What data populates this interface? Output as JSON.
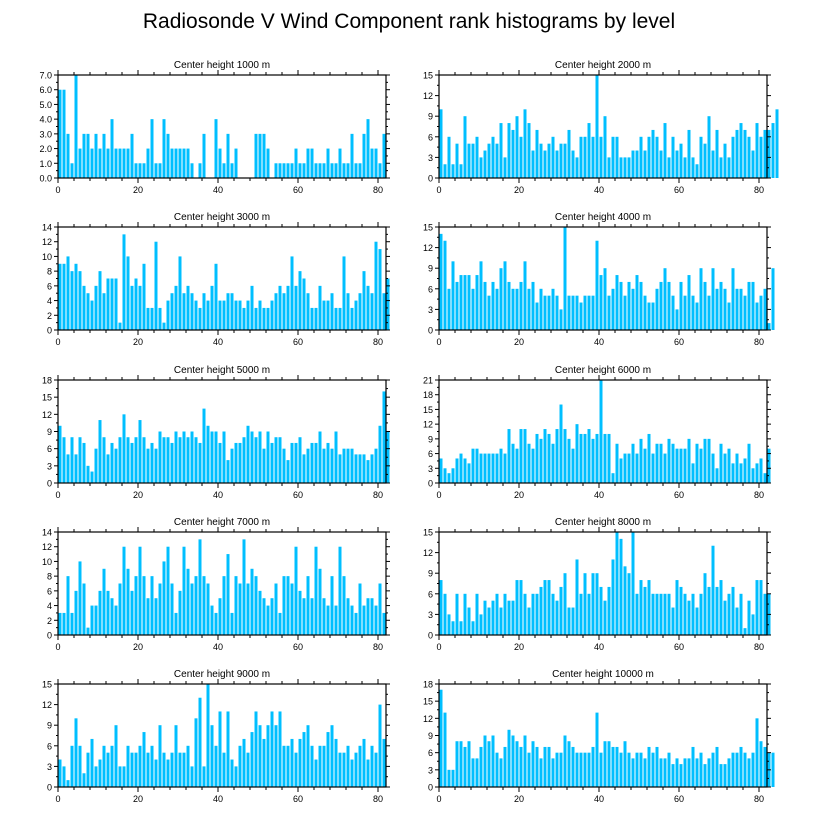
{
  "title": "Radiosonde V Wind Component rank histograms by level",
  "bar_color": "#00BFFF",
  "chart_data": [
    {
      "type": "bar",
      "title": "Center height 1000 m",
      "ylim": [
        0,
        7
      ],
      "yticks": [
        0,
        1,
        2,
        3,
        4,
        5,
        6,
        7
      ],
      "ytick_labels": [
        "0.0",
        "1.0",
        "2.0",
        "3.0",
        "4.0",
        "5.0",
        "6.0",
        "7.0"
      ],
      "xlim": [
        0,
        82
      ],
      "xticks": [
        0,
        20,
        40,
        60,
        80
      ],
      "values": [
        6,
        6,
        3,
        1,
        7,
        2,
        3,
        3,
        2,
        3,
        2,
        3,
        2,
        4,
        2,
        2,
        2,
        2,
        3,
        1,
        1,
        1,
        2,
        4,
        1,
        1,
        4,
        3,
        2,
        2,
        2,
        2,
        2,
        1,
        0,
        1,
        3,
        0,
        0,
        4,
        2,
        1,
        3,
        1,
        2,
        0,
        0,
        0,
        0,
        3,
        3,
        3,
        2,
        0,
        1,
        1,
        1,
        1,
        1,
        2,
        1,
        1,
        2,
        2,
        1,
        1,
        1,
        2,
        1,
        1,
        2,
        1,
        1,
        3,
        1,
        1,
        3,
        4,
        2,
        2,
        1,
        3
      ]
    },
    {
      "type": "bar",
      "title": "Center height 2000 m",
      "ylim": [
        0,
        15
      ],
      "yticks": [
        0,
        3,
        6,
        9,
        12,
        15
      ],
      "ytick_labels": [
        "0",
        "3",
        "6",
        "9",
        "12",
        "15"
      ],
      "xlim": [
        0,
        82
      ],
      "xticks": [
        0,
        20,
        40,
        60,
        80
      ],
      "values": [
        10,
        2,
        6,
        2,
        5,
        2,
        9,
        5,
        5,
        6,
        3,
        4,
        5,
        6,
        5,
        8,
        3,
        8,
        7,
        9,
        6,
        10,
        8,
        4,
        7,
        5,
        4,
        5,
        6,
        4,
        5,
        5,
        7,
        4,
        3,
        6,
        6,
        8,
        6,
        15,
        6,
        9,
        3,
        6,
        6,
        3,
        3,
        3,
        4,
        4,
        6,
        4,
        6,
        7,
        6,
        4,
        8,
        3,
        6,
        4,
        5,
        3,
        7,
        3,
        2,
        6,
        5,
        9,
        4,
        7,
        3,
        5,
        3,
        6,
        7,
        8,
        7,
        6,
        4,
        8,
        6,
        7,
        7,
        8,
        10
      ]
    },
    {
      "type": "bar",
      "title": "Center height 3000 m",
      "ylim": [
        0,
        14
      ],
      "yticks": [
        0,
        2,
        4,
        6,
        8,
        10,
        12,
        14
      ],
      "ytick_labels": [
        "0",
        "2",
        "4",
        "6",
        "8",
        "10",
        "12",
        "14"
      ],
      "xlim": [
        0,
        82
      ],
      "xticks": [
        0,
        20,
        40,
        60,
        80
      ],
      "values": [
        9,
        9,
        10,
        8,
        9,
        8,
        6,
        5,
        4,
        6,
        8,
        5,
        7,
        7,
        7,
        1,
        13,
        10,
        6,
        7,
        6,
        9,
        3,
        3,
        12,
        3,
        1,
        4,
        5,
        6,
        10,
        5,
        6,
        5,
        4,
        3,
        5,
        4,
        6,
        9,
        4,
        4,
        5,
        5,
        4,
        4,
        3,
        4,
        6,
        3,
        4,
        3,
        3,
        4,
        5,
        6,
        5,
        6,
        10,
        6,
        8,
        7,
        5,
        3,
        3,
        6,
        4,
        4,
        5,
        3,
        3,
        10,
        5,
        3,
        4,
        5,
        8,
        6,
        5,
        12,
        11,
        5,
        7
      ]
    },
    {
      "type": "bar",
      "title": "Center height 4000 m",
      "ylim": [
        0,
        15
      ],
      "yticks": [
        0,
        3,
        6,
        9,
        12,
        15
      ],
      "ytick_labels": [
        "0",
        "3",
        "6",
        "9",
        "12",
        "15"
      ],
      "xlim": [
        0,
        82
      ],
      "xticks": [
        0,
        20,
        40,
        60,
        80
      ],
      "values": [
        14,
        13,
        6,
        10,
        7,
        8,
        8,
        8,
        6,
        8,
        10,
        7,
        5,
        7,
        6,
        9,
        10,
        7,
        6,
        6,
        7,
        10,
        6,
        7,
        4,
        6,
        5,
        5,
        6,
        5,
        3,
        15,
        5,
        5,
        5,
        4,
        5,
        5,
        5,
        13,
        8,
        9,
        5,
        6,
        8,
        7,
        5,
        7,
        6,
        8,
        7,
        5,
        4,
        4,
        6,
        7,
        9,
        7,
        5,
        3,
        7,
        5,
        8,
        5,
        4,
        9,
        7,
        5,
        9,
        6,
        7,
        6,
        4,
        9,
        6,
        6,
        5,
        7,
        7,
        4,
        5,
        6,
        1,
        9
      ]
    },
    {
      "type": "bar",
      "title": "Center height 5000 m",
      "ylim": [
        0,
        18
      ],
      "yticks": [
        0,
        3,
        6,
        9,
        12,
        15,
        18
      ],
      "ytick_labels": [
        "0",
        "3",
        "6",
        "9",
        "12",
        "15",
        "18"
      ],
      "xlim": [
        0,
        82
      ],
      "xticks": [
        0,
        20,
        40,
        60,
        80
      ],
      "values": [
        10,
        8,
        5,
        8,
        5,
        8,
        7,
        3,
        2,
        6,
        11,
        8,
        5,
        7,
        6,
        8,
        12,
        8,
        7,
        8,
        11,
        8,
        6,
        7,
        6,
        9,
        8,
        8,
        7,
        9,
        8,
        9,
        8,
        9,
        8,
        7,
        13,
        10,
        9,
        9,
        7,
        9,
        4,
        6,
        7,
        7,
        8,
        10,
        9,
        8,
        9,
        6,
        9,
        7,
        8,
        8,
        6,
        4,
        7,
        7,
        8,
        5,
        6,
        7,
        7,
        9,
        6,
        7,
        6,
        9,
        5,
        6,
        6,
        6,
        5,
        5,
        5,
        4,
        5,
        6,
        10,
        16,
        9
      ]
    },
    {
      "type": "bar",
      "title": "Center height 6000 m",
      "ylim": [
        0,
        21
      ],
      "yticks": [
        0,
        3,
        6,
        9,
        12,
        15,
        18,
        21
      ],
      "ytick_labels": [
        "0",
        "3",
        "6",
        "9",
        "12",
        "15",
        "18",
        "21"
      ],
      "xlim": [
        0,
        82
      ],
      "xticks": [
        0,
        20,
        40,
        60,
        80
      ],
      "values": [
        5,
        3,
        2,
        3,
        5,
        6,
        5,
        4,
        7,
        7,
        6,
        6,
        6,
        6,
        6,
        7,
        6,
        11,
        8,
        7,
        11,
        11,
        8,
        7,
        10,
        9,
        11,
        10,
        8,
        11,
        16,
        11,
        9,
        7,
        12,
        10,
        10,
        11,
        9,
        10,
        21,
        10,
        10,
        2,
        8,
        5,
        6,
        6,
        8,
        6,
        9,
        7,
        10,
        6,
        8,
        8,
        6,
        9,
        8,
        7,
        7,
        7,
        9,
        4,
        8,
        7,
        9,
        9,
        6,
        3,
        8,
        6,
        7,
        4,
        6,
        4,
        5,
        8,
        3,
        4,
        5,
        2,
        7
      ]
    },
    {
      "type": "bar",
      "title": "Center height 7000 m",
      "ylim": [
        0,
        14
      ],
      "yticks": [
        0,
        2,
        4,
        6,
        8,
        10,
        12,
        14
      ],
      "ytick_labels": [
        "0",
        "2",
        "4",
        "6",
        "8",
        "10",
        "12",
        "14"
      ],
      "xlim": [
        0,
        82
      ],
      "xticks": [
        0,
        20,
        40,
        60,
        80
      ],
      "values": [
        3,
        3,
        8,
        3,
        6,
        10,
        7,
        1,
        4,
        4,
        6,
        9,
        6,
        5,
        4,
        7,
        12,
        9,
        6,
        8,
        12,
        8,
        5,
        8,
        5,
        7,
        10,
        12,
        7,
        3,
        6,
        12,
        9,
        7,
        8,
        13,
        8,
        7,
        4,
        3,
        5,
        8,
        11,
        3,
        8,
        7,
        13,
        7,
        9,
        8,
        6,
        5,
        4,
        5,
        7,
        3,
        8,
        8,
        7,
        12,
        6,
        5,
        8,
        5,
        12,
        9,
        5,
        4,
        8,
        4,
        12,
        8,
        5,
        4,
        3,
        7,
        4,
        5,
        5,
        4,
        7,
        3
      ]
    },
    {
      "type": "bar",
      "title": "Center height 8000 m",
      "ylim": [
        0,
        15
      ],
      "yticks": [
        0,
        3,
        6,
        9,
        12,
        15
      ],
      "ytick_labels": [
        "0",
        "3",
        "6",
        "9",
        "12",
        "15"
      ],
      "xlim": [
        0,
        82
      ],
      "xticks": [
        0,
        20,
        40,
        60,
        80
      ],
      "values": [
        8,
        6,
        3,
        2,
        6,
        2,
        6,
        4,
        2,
        6,
        3,
        5,
        4,
        5,
        6,
        4,
        6,
        5,
        5,
        8,
        8,
        6,
        4,
        6,
        6,
        7,
        8,
        8,
        6,
        5,
        7,
        9,
        4,
        4,
        11,
        6,
        9,
        6,
        9,
        9,
        7,
        5,
        7,
        11,
        15,
        14,
        10,
        9,
        15,
        6,
        8,
        7,
        8,
        6,
        6,
        6,
        6,
        6,
        4,
        8,
        7,
        6,
        5,
        6,
        4,
        6,
        9,
        7,
        13,
        7,
        8,
        5,
        6,
        7,
        4,
        6,
        1,
        5,
        3,
        8,
        8,
        6,
        6
      ]
    },
    {
      "type": "bar",
      "title": "Center height 9000 m",
      "ylim": [
        0,
        15
      ],
      "yticks": [
        0,
        3,
        6,
        9,
        12,
        15
      ],
      "ytick_labels": [
        "0",
        "3",
        "6",
        "9",
        "12",
        "15"
      ],
      "xlim": [
        0,
        82
      ],
      "xticks": [
        0,
        20,
        40,
        60,
        80
      ],
      "values": [
        4,
        3,
        1,
        6,
        10,
        6,
        2,
        5,
        7,
        3,
        4,
        6,
        5,
        6,
        9,
        3,
        3,
        6,
        5,
        5,
        6,
        8,
        5,
        6,
        4,
        9,
        5,
        4,
        5,
        9,
        5,
        5,
        6,
        3,
        10,
        13,
        3,
        15,
        9,
        6,
        11,
        5,
        11,
        4,
        3,
        6,
        7,
        5,
        8,
        11,
        9,
        7,
        9,
        11,
        9,
        11,
        6,
        6,
        7,
        5,
        7,
        8,
        9,
        6,
        4,
        6,
        6,
        8,
        9,
        7,
        5,
        5,
        6,
        4,
        5,
        6,
        7,
        4,
        6,
        5,
        12,
        7
      ]
    },
    {
      "type": "bar",
      "title": "Center height 10000 m",
      "ylim": [
        0,
        18
      ],
      "yticks": [
        0,
        3,
        6,
        9,
        12,
        15,
        18
      ],
      "ytick_labels": [
        "0",
        "3",
        "6",
        "9",
        "12",
        "15",
        "18"
      ],
      "xlim": [
        0,
        82
      ],
      "xticks": [
        0,
        20,
        40,
        60,
        80
      ],
      "values": [
        17,
        13,
        3,
        3,
        8,
        8,
        7,
        8,
        5,
        5,
        7,
        9,
        8,
        9,
        6,
        5,
        7,
        10,
        9,
        8,
        7,
        9,
        6,
        8,
        7,
        5,
        7,
        7,
        5,
        6,
        6,
        9,
        8,
        7,
        6,
        6,
        6,
        6,
        7,
        13,
        6,
        8,
        8,
        7,
        7,
        6,
        8,
        6,
        5,
        6,
        6,
        5,
        7,
        6,
        7,
        5,
        5,
        6,
        4,
        5,
        4,
        5,
        5,
        7,
        5,
        6,
        4,
        5,
        6,
        7,
        4,
        4,
        5,
        6,
        6,
        7,
        6,
        5,
        6,
        12,
        8,
        7,
        6,
        6
      ]
    }
  ]
}
